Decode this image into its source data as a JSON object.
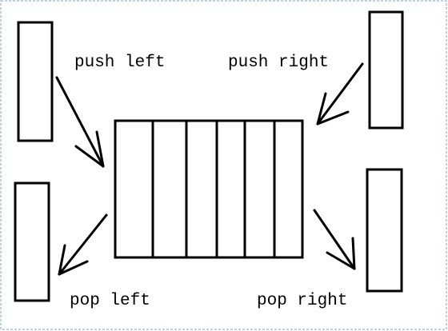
{
  "labels": {
    "push_left": "push left",
    "push_right": "push right",
    "pop_left": "pop left",
    "pop_right": "pop right"
  },
  "queue": {
    "slot_count": 6
  },
  "colors": {
    "stroke": "#000000",
    "background": "#ffffff",
    "frame": "#7aa7c7"
  }
}
